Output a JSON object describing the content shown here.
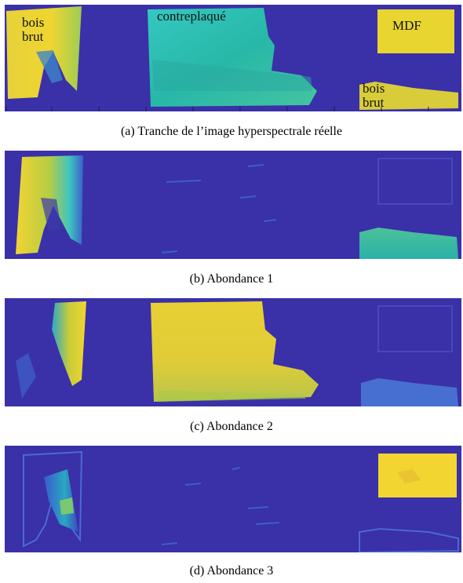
{
  "figure": {
    "panels": [
      {
        "id": "a",
        "caption": "(a)  Tranche de l’image hyperspectrale réelle",
        "labels": {
          "bois_brut_left": [
            "bois",
            "brut"
          ],
          "contreplaque": "contreplaqué",
          "mdf": "MDF",
          "bois_brut_right": [
            "bois",
            "brut"
          ]
        }
      },
      {
        "id": "b",
        "caption": "(b)  Abondance 1"
      },
      {
        "id": "c",
        "caption": "(c)  Abondance 2"
      },
      {
        "id": "d",
        "caption": "(d)  Abondance 3"
      }
    ],
    "colors": {
      "background": "#3a2fa8",
      "low": "#3e3aa6",
      "mid": "#22b8a0",
      "high": "#f2d530",
      "peak": "#f7e83a"
    }
  }
}
